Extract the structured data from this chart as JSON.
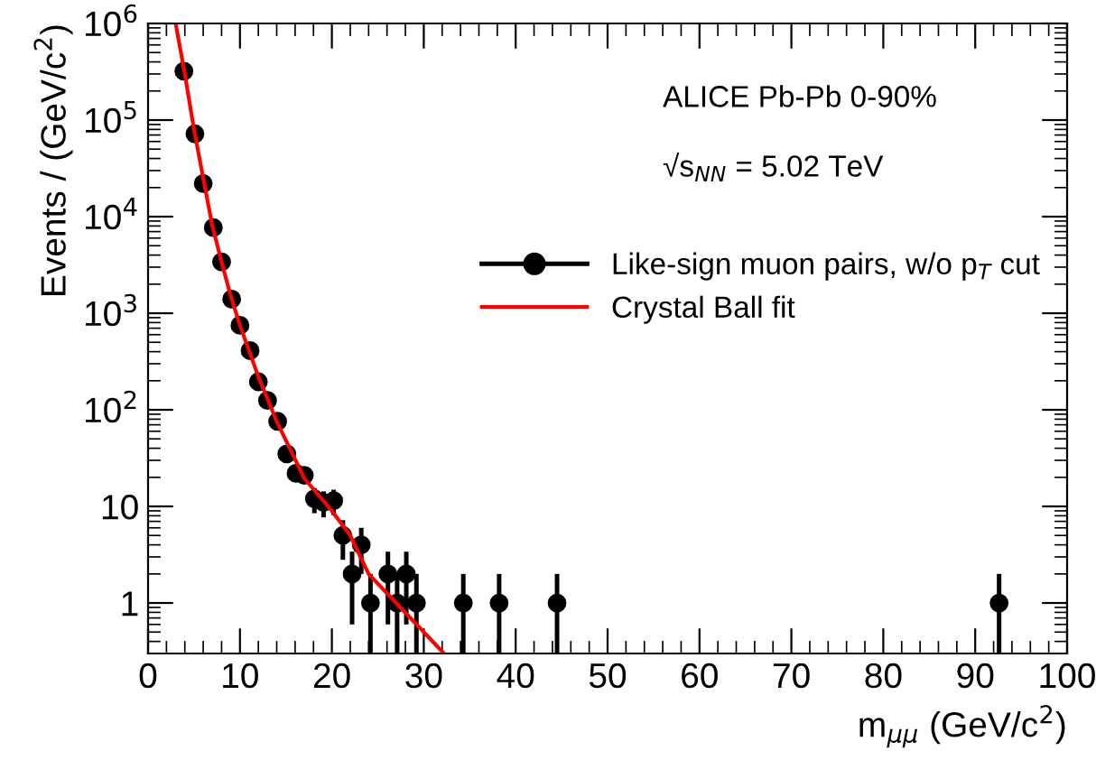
{
  "chart_data": {
    "type": "scatter",
    "xlabel": "m$_{μμ}$ (GeV/c$^{2}$)",
    "ylabel": "Events / (GeV/c$^{2}$)",
    "annotations": [
      "ALICE Pb-Pb 0-90%",
      "√s$_{NN}$ = 5.02 TeV"
    ],
    "log": "y",
    "xlim": [
      0,
      100
    ],
    "xticks": [
      0,
      10,
      20,
      30,
      40,
      50,
      60,
      70,
      80,
      90,
      100
    ],
    "ylim": [
      0.3,
      1000000
    ],
    "yticks": [
      1,
      10,
      {
        "value": 100,
        "label": "10$^{2}$"
      },
      {
        "value": 1000,
        "label": "10$^{3}$"
      },
      {
        "value": 10000,
        "label": "10$^{4}$"
      },
      {
        "value": 100000,
        "label": "10$^{5}$"
      },
      {
        "value": 1000000,
        "label": "10$^{6}$"
      }
    ],
    "grid": false,
    "legend": "right",
    "series": [
      {
        "name": "Like-sign muon pairs, w/o p$_{T}$ cut",
        "color": "#000000",
        "marker": "circle",
        "x": [
          3.9,
          5.1,
          6,
          7.1,
          8,
          9.1,
          10,
          11.1,
          12,
          13,
          14.1,
          15.1,
          16.1,
          17,
          18.1,
          19.1,
          20.2,
          21.2,
          22.2,
          23.2,
          24.2,
          26.1,
          27.1,
          28.1,
          29.2,
          34.3,
          38.2,
          44.5,
          92.6
        ],
        "values": [
          320000,
          72000,
          22000,
          7700,
          3400,
          1400,
          750,
          410,
          195,
          125,
          76,
          35,
          22,
          21,
          12,
          11,
          11.5,
          5,
          2,
          4,
          1,
          2,
          1,
          2,
          1,
          1,
          1,
          1,
          1
        ],
        "errors": [
          null,
          null,
          null,
          null,
          null,
          null,
          null,
          null,
          null,
          null,
          null,
          null,
          null,
          null,
          3.5,
          3.3,
          3.4,
          2.2,
          1.4,
          2,
          [
            0.3,
            2
          ],
          1.4,
          [
            0.3,
            2
          ],
          1.4,
          [
            0.3,
            2
          ],
          [
            0.3,
            2
          ],
          [
            0.3,
            2
          ],
          [
            0.3,
            2
          ],
          [
            0.3,
            2
          ]
        ]
      },
      {
        "name": "Crystal Ball fit",
        "type": "line",
        "color": "#ff0000",
        "marker": "none",
        "line_style": "solid",
        "x": [
          3,
          4,
          5,
          6,
          7,
          8,
          9,
          10,
          12,
          14,
          17,
          20,
          22,
          24,
          27,
          30,
          32.2
        ],
        "values": [
          1000000,
          300000,
          80000,
          25000,
          8000,
          3400,
          1500,
          750,
          220,
          76,
          19.5,
          9,
          5,
          2,
          1,
          0.5,
          0.3
        ]
      }
    ]
  }
}
